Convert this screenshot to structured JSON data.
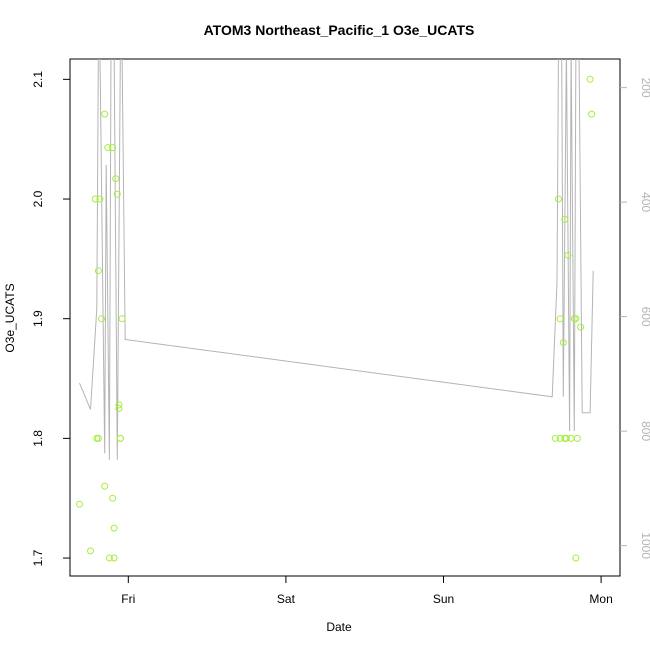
{
  "chart_data": {
    "type": "scatter",
    "title": "ATOM3 Northeast_Pacific_1 O3e_UCATS",
    "xlabel": "Date",
    "ylabel": "O3e_UCATS",
    "x_ticks": [
      "Fri",
      "Sat",
      "Sun",
      "Mon"
    ],
    "y_ticks": [
      "1.7",
      "1.8",
      "1.9",
      "2.0",
      "2.1"
    ],
    "y2_ticks": [
      "200",
      "400",
      "600",
      "800",
      "1000"
    ],
    "xlim": [
      -0.37,
      3.12
    ],
    "ylim": [
      1.685,
      2.117
    ],
    "y2lim": [
      1053,
      150
    ],
    "grid": false,
    "legend": "none",
    "colors": {
      "points": "#a6ee3f",
      "line": "#b4b4b4",
      "axis": "#000000",
      "right_axis": "#b4b4b4"
    },
    "series": [
      {
        "name": "",
        "role": "O3e_UCATS points (left axis)",
        "points": [
          {
            "x": -0.31,
            "y": 1.745
          },
          {
            "x": -0.24,
            "y": 1.706
          },
          {
            "x": -0.21,
            "y": 2.0
          },
          {
            "x": -0.2,
            "y": 1.8
          },
          {
            "x": -0.19,
            "y": 1.8
          },
          {
            "x": -0.19,
            "y": 1.94
          },
          {
            "x": -0.18,
            "y": 2.0
          },
          {
            "x": -0.17,
            "y": 1.9
          },
          {
            "x": -0.15,
            "y": 2.071
          },
          {
            "x": -0.15,
            "y": 1.76
          },
          {
            "x": -0.13,
            "y": 2.043
          },
          {
            "x": -0.12,
            "y": 1.7
          },
          {
            "x": -0.1,
            "y": 2.043
          },
          {
            "x": -0.1,
            "y": 1.75
          },
          {
            "x": -0.09,
            "y": 1.725
          },
          {
            "x": -0.09,
            "y": 1.7
          },
          {
            "x": -0.08,
            "y": 2.017
          },
          {
            "x": -0.07,
            "y": 2.004
          },
          {
            "x": -0.06,
            "y": 1.828
          },
          {
            "x": -0.06,
            "y": 1.825
          },
          {
            "x": -0.05,
            "y": 1.8
          },
          {
            "x": -0.05,
            "y": 1.8
          },
          {
            "x": -0.04,
            "y": 1.9
          },
          {
            "x": 2.71,
            "y": 1.8
          },
          {
            "x": 2.73,
            "y": 2.0
          },
          {
            "x": 2.74,
            "y": 1.9
          },
          {
            "x": 2.74,
            "y": 1.8
          },
          {
            "x": 2.76,
            "y": 1.88
          },
          {
            "x": 2.77,
            "y": 1.983
          },
          {
            "x": 2.77,
            "y": 1.8
          },
          {
            "x": 2.78,
            "y": 1.8
          },
          {
            "x": 2.79,
            "y": 1.953
          },
          {
            "x": 2.81,
            "y": 1.8
          },
          {
            "x": 2.83,
            "y": 1.9
          },
          {
            "x": 2.84,
            "y": 1.9
          },
          {
            "x": 2.84,
            "y": 1.7
          },
          {
            "x": 2.85,
            "y": 1.8
          },
          {
            "x": 2.87,
            "y": 1.893
          },
          {
            "x": 2.93,
            "y": 2.1
          },
          {
            "x": 2.94,
            "y": 2.071
          }
        ]
      },
      {
        "name": "",
        "role": "altitude line (right axis)",
        "points": [
          {
            "x": -0.31,
            "y": 716
          },
          {
            "x": -0.24,
            "y": 762
          },
          {
            "x": -0.2,
            "y": 586
          },
          {
            "x": -0.19,
            "y": 130
          },
          {
            "x": -0.18,
            "y": 130
          },
          {
            "x": -0.15,
            "y": 839
          },
          {
            "x": -0.14,
            "y": 335
          },
          {
            "x": -0.12,
            "y": 850
          },
          {
            "x": -0.11,
            "y": 130
          },
          {
            "x": -0.09,
            "y": 130
          },
          {
            "x": -0.07,
            "y": 850
          },
          {
            "x": -0.05,
            "y": 130
          },
          {
            "x": -0.04,
            "y": 130
          },
          {
            "x": -0.02,
            "y": 640
          },
          {
            "x": 2.69,
            "y": 740
          },
          {
            "x": 2.72,
            "y": 540
          },
          {
            "x": 2.73,
            "y": 130
          },
          {
            "x": 2.75,
            "y": 130
          },
          {
            "x": 2.76,
            "y": 740
          },
          {
            "x": 2.78,
            "y": 130
          },
          {
            "x": 2.8,
            "y": 800
          },
          {
            "x": 2.81,
            "y": 130
          },
          {
            "x": 2.83,
            "y": 800
          },
          {
            "x": 2.84,
            "y": 130
          },
          {
            "x": 2.86,
            "y": 130
          },
          {
            "x": 2.88,
            "y": 768
          },
          {
            "x": 2.93,
            "y": 768
          },
          {
            "x": 2.95,
            "y": 520
          }
        ]
      }
    ]
  }
}
